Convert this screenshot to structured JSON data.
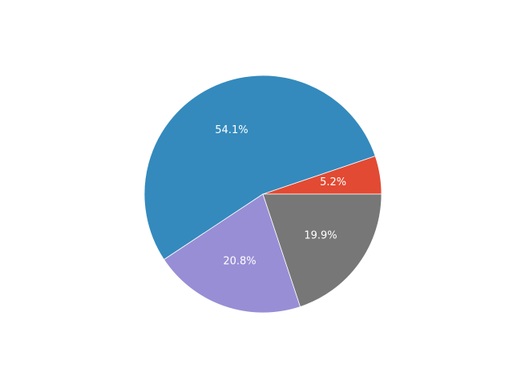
{
  "chart_data": {
    "type": "pie",
    "values": [
      5.2,
      54.1,
      20.8,
      19.9
    ],
    "value_labels": [
      "5.2%",
      "54.1%",
      "20.8%",
      "19.9%"
    ],
    "colors": [
      "#e24a33",
      "#348abd",
      "#988ed5",
      "#777777"
    ]
  }
}
